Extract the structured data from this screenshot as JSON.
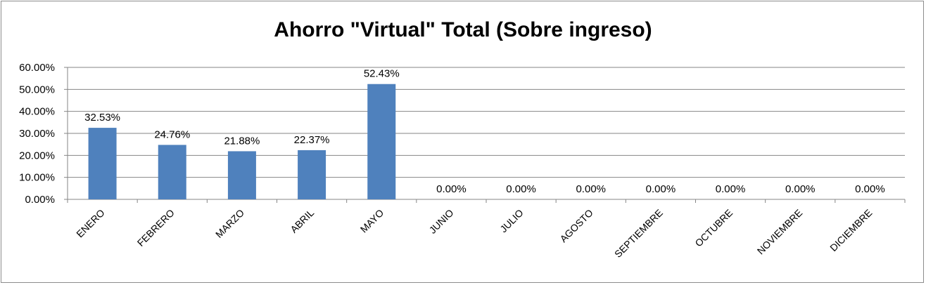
{
  "chart_data": {
    "type": "bar",
    "title": "Ahorro \"Virtual\" Total (Sobre ingreso)",
    "categories": [
      "ENERO",
      "FEBRERO",
      "MARZO",
      "ABRIL",
      "MAYO",
      "JUNIO",
      "JULIO",
      "AGOSTO",
      "SEPTIEMBRE",
      "OCTUBRE",
      "NOVIEMBRE",
      "DICIEMBRE"
    ],
    "values": [
      32.53,
      24.76,
      21.88,
      22.37,
      52.43,
      0,
      0,
      0,
      0,
      0,
      0,
      0
    ],
    "data_labels": [
      "32.53%",
      "24.76%",
      "21.88%",
      "22.37%",
      "52.43%",
      "0.00%",
      "0.00%",
      "0.00%",
      "0.00%",
      "0.00%",
      "0.00%",
      "0.00%"
    ],
    "y_ticks": [
      "0.00%",
      "10.00%",
      "20.00%",
      "30.00%",
      "40.00%",
      "50.00%",
      "60.00%"
    ],
    "ylim": [
      0,
      60
    ],
    "grid": true,
    "legend": "none",
    "bar_color": "#4f81bd"
  }
}
